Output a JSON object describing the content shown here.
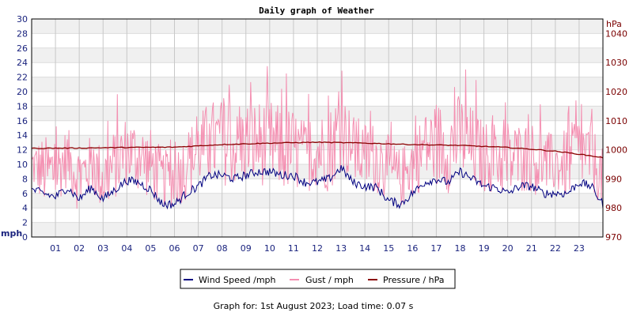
{
  "chart_data": {
    "type": "line",
    "title": "Daily graph of Weather",
    "y_left": {
      "label": "mph",
      "min": 0,
      "max": 30,
      "ticks": [
        0,
        2,
        4,
        6,
        8,
        10,
        12,
        14,
        16,
        18,
        20,
        22,
        24,
        26,
        28,
        30
      ]
    },
    "y_right": {
      "label": "hPa",
      "min": 970,
      "max": 1045,
      "ticks": [
        970,
        980,
        990,
        1000,
        1010,
        1020,
        1030,
        1040
      ]
    },
    "x": {
      "min": 0,
      "max": 24,
      "tick_labels": [
        "01",
        "02",
        "03",
        "04",
        "05",
        "06",
        "07",
        "08",
        "09",
        "10",
        "11",
        "12",
        "13",
        "14",
        "15",
        "16",
        "17",
        "18",
        "19",
        "20",
        "21",
        "22",
        "23"
      ]
    },
    "grid": true,
    "legend_position": "bottom",
    "series": [
      {
        "name": "Wind Speed /mph",
        "color": "#000080",
        "axis": "left",
        "x": [
          0,
          0.5,
          1,
          1.5,
          2,
          2.5,
          3,
          3.5,
          4,
          4.5,
          5,
          5.5,
          6,
          6.5,
          7,
          7.5,
          8,
          8.5,
          9,
          9.5,
          10,
          10.5,
          11,
          11.5,
          12,
          12.5,
          13,
          13.5,
          14,
          14.5,
          15,
          15.5,
          16,
          16.5,
          17,
          17.5,
          18,
          18.5,
          19,
          19.5,
          20,
          20.5,
          21,
          21.5,
          22,
          22.5,
          23,
          23.5,
          24
        ],
        "values": [
          6.5,
          6,
          5.5,
          6.8,
          5.2,
          6.8,
          5.2,
          6.5,
          7.8,
          7.5,
          6.5,
          4.5,
          4.5,
          6,
          7,
          8.5,
          8.5,
          8,
          8.5,
          9,
          9,
          8.5,
          8.5,
          7.5,
          7.5,
          8,
          9.5,
          7.5,
          7,
          6.8,
          5,
          4.5,
          6,
          7.5,
          8,
          7.5,
          9,
          8,
          7,
          6.8,
          6,
          7,
          7,
          6,
          6,
          6,
          7.5,
          7,
          4.5
        ]
      },
      {
        "name": "Gust / mph",
        "color": "#f48fb1",
        "axis": "left",
        "x": [
          0,
          0.5,
          1,
          1.5,
          2,
          2.5,
          3,
          3.5,
          4,
          4.5,
          5,
          5.5,
          6,
          6.5,
          7,
          7.5,
          8,
          8.5,
          9,
          9.5,
          10,
          10.5,
          11,
          11.5,
          12,
          12.5,
          13,
          13.5,
          14,
          14.5,
          15,
          15.5,
          16,
          16.5,
          17,
          17.5,
          18,
          18.5,
          19,
          19.5,
          20,
          20.5,
          21,
          21.5,
          22,
          22.5,
          23,
          23.5,
          24
        ],
        "values": [
          10,
          9,
          9,
          11,
          8,
          10,
          8,
          10,
          12,
          11,
          10,
          8,
          8,
          10,
          12,
          13,
          13,
          12,
          13,
          13,
          13,
          12,
          12,
          11,
          12,
          12,
          15,
          12,
          11,
          11,
          9,
          8,
          10,
          12,
          13,
          12,
          14,
          12,
          11,
          11,
          10,
          11,
          11,
          10,
          10,
          10,
          12,
          11,
          8
        ],
        "spread": [
          3,
          5,
          5,
          4,
          5,
          4,
          5,
          5,
          5,
          5,
          5,
          4,
          4,
          5,
          5,
          6,
          6,
          5,
          6,
          6,
          6,
          6,
          6,
          5,
          5,
          6,
          6,
          5,
          5,
          5,
          5,
          4,
          5,
          5,
          6,
          6,
          6,
          6,
          5,
          5,
          5,
          5,
          5,
          5,
          4,
          5,
          5,
          5,
          4
        ]
      },
      {
        "name": "Pressure / hPa",
        "color": "#8b0000",
        "axis": "right",
        "x": [
          0,
          2,
          4,
          6,
          8,
          10,
          12,
          14,
          16,
          18,
          20,
          21,
          22,
          23,
          24
        ],
        "values": [
          1000.5,
          1000.6,
          1000.8,
          1000.9,
          1001.8,
          1002.3,
          1002.6,
          1002.3,
          1001.8,
          1001.5,
          1000.8,
          1000.2,
          999.5,
          998.5,
          997.3
        ]
      }
    ]
  },
  "footer": {
    "text": "Graph for: 1st August 2023; Load time: 0.07 s"
  }
}
